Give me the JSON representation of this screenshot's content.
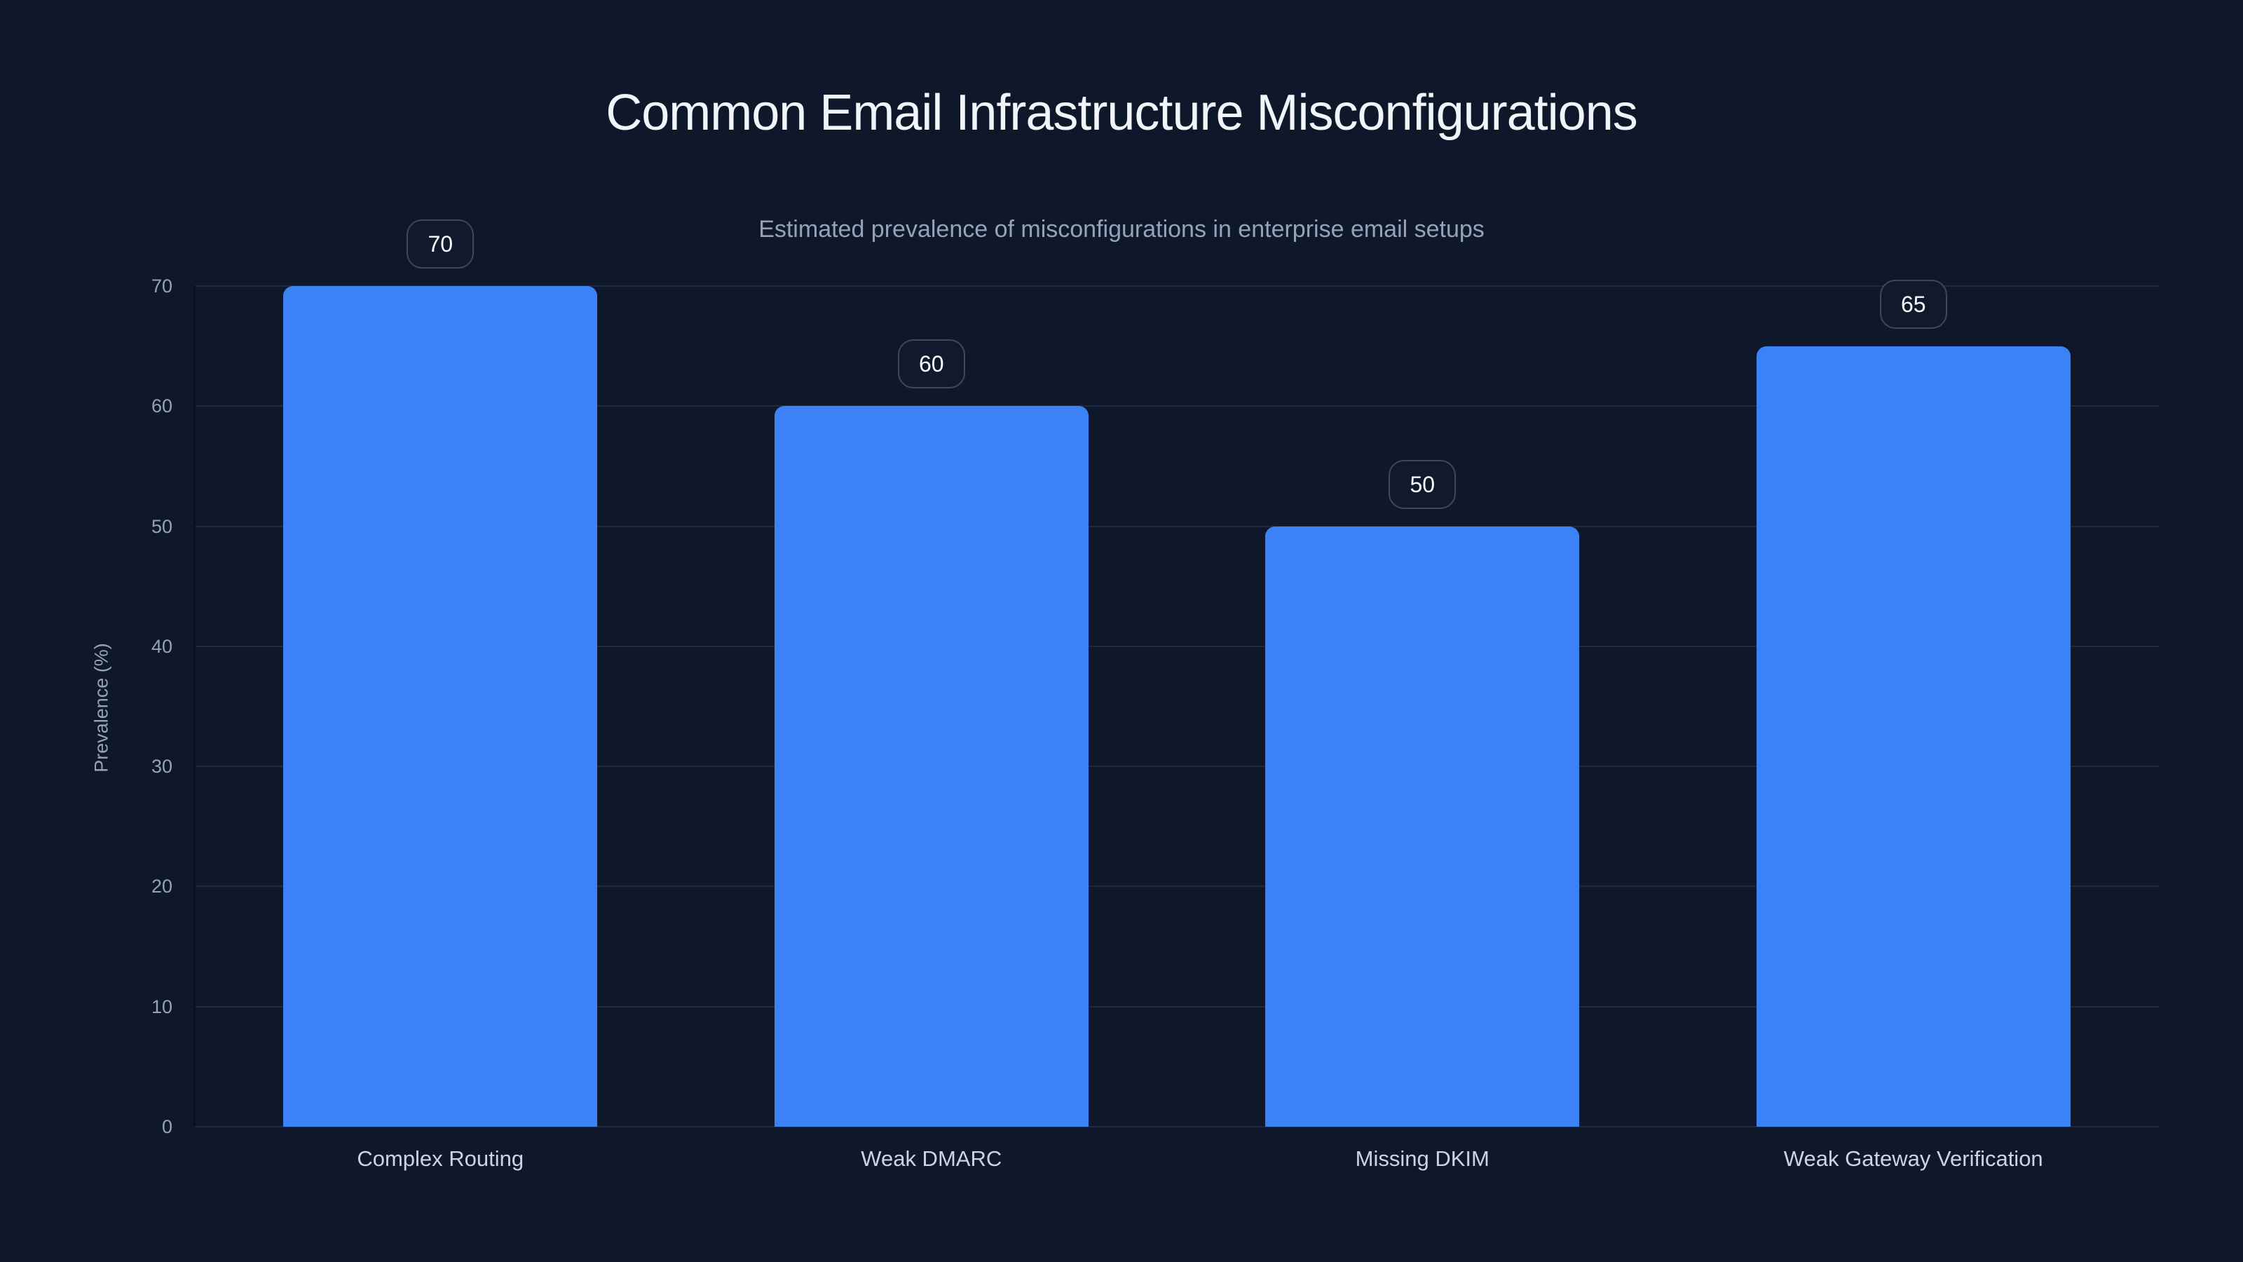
{
  "chart_data": {
    "type": "bar",
    "title": "Common Email Infrastructure Misconfigurations",
    "subtitle": "Estimated prevalence of misconfigurations in enterprise email setups",
    "xlabel": "",
    "ylabel": "Prevalence (%)",
    "categories": [
      "Complex Routing",
      "Weak DMARC",
      "Missing DKIM",
      "Weak Gateway Verification"
    ],
    "values": [
      70,
      60,
      50,
      65
    ],
    "value_labels": [
      "70",
      "60",
      "50",
      "65"
    ],
    "ylim": [
      0,
      70
    ],
    "yticks": [
      0,
      10,
      20,
      30,
      40,
      50,
      60,
      70
    ],
    "grid": "horizontal",
    "legend": "none",
    "colors": {
      "background": "#0f172a",
      "bar": "#3b82f6",
      "gridline": "#1f2a40",
      "axis_line": "#0a101d",
      "title_text": "#f1f5f9",
      "subtitle_text": "#94a3b8",
      "tick_text": "#94a3b8",
      "category_text": "#cbd5e1",
      "badge_text": "#f8fafc",
      "badge_border": "#3d4859",
      "badge_bg": "#111a2c"
    }
  }
}
